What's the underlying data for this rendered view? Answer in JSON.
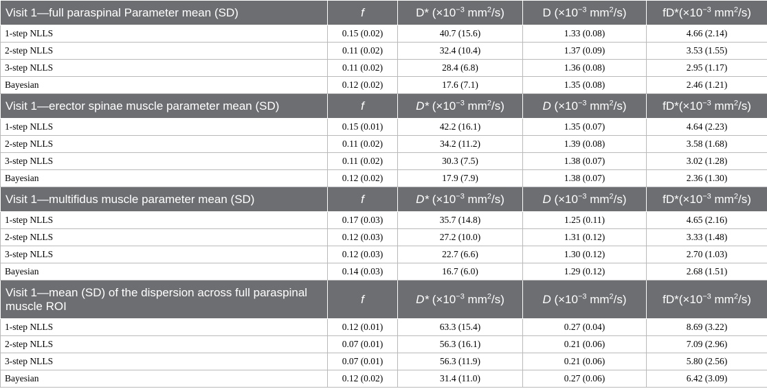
{
  "col_headers": {
    "f": "f",
    "dstar_pre": "D*",
    "d_pre": "D",
    "unit_lead": " (×10",
    "exp": "−3",
    "unit_mid": " mm",
    "sq": "2",
    "unit_tail": "/s)",
    "fdstar_pre": "fD*",
    "fdstar_lead": "(×10"
  },
  "sections": [
    {
      "title": "Visit 1—full paraspinal Parameter mean (SD)",
      "rows": [
        {
          "method": "1-step NLLS",
          "f": "0.15 (0.02)",
          "dstar": "40.7 (15.6)",
          "d": "1.33 (0.08)",
          "fdstar": "4.66 (2.14)"
        },
        {
          "method": "2-step NLLS",
          "f": "0.11 (0.02)",
          "dstar": "32.4 (10.4)",
          "d": "1.37 (0.09)",
          "fdstar": "3.53 (1.55)"
        },
        {
          "method": "3-step NLLS",
          "f": "0.11 (0.02)",
          "dstar": "28.4 (6.8)",
          "d": "1.36 (0.08)",
          "fdstar": "2.95 (1.17)"
        },
        {
          "method": "Bayesian",
          "f": "0.12 (0.02)",
          "dstar": "17.6 (7.1)",
          "d": "1.35 (0.08)",
          "fdstar": "2.46 (1.21)"
        }
      ]
    },
    {
      "title": "Visit 1—erector spinae muscle parameter mean (SD)",
      "rows": [
        {
          "method": "1-step NLLS",
          "f": "0.15 (0.01)",
          "dstar": "42.2 (16.1)",
          "d": "1.35 (0.07)",
          "fdstar": "4.64 (2.23)"
        },
        {
          "method": "2-step NLLS",
          "f": "0.11 (0.02)",
          "dstar": "34.2 (11.2)",
          "d": "1.39 (0.08)",
          "fdstar": "3.58 (1.68)"
        },
        {
          "method": "3-step NLLS",
          "f": "0.11 (0.02)",
          "dstar": "30.3 (7.5)",
          "d": "1.38 (0.07)",
          "fdstar": "3.02 (1.28)"
        },
        {
          "method": "Bayesian",
          "f": "0.12 (0.02)",
          "dstar": "17.9 (7.9)",
          "d": "1.38 (0.07)",
          "fdstar": "2.36 (1.30)"
        }
      ]
    },
    {
      "title": "Visit 1—multifidus muscle parameter mean (SD)",
      "rows": [
        {
          "method": "1-step NLLS",
          "f": "0.17 (0.03)",
          "dstar": "35.7 (14.8)",
          "d": "1.25 (0.11)",
          "fdstar": "4.65 (2.16)"
        },
        {
          "method": "2-step NLLS",
          "f": "0.12 (0.03)",
          "dstar": "27.2 (10.0)",
          "d": "1.31 (0.12)",
          "fdstar": "3.33 (1.48)"
        },
        {
          "method": "3-step NLLS",
          "f": "0.12 (0.03)",
          "dstar": "22.7 (6.6)",
          "d": "1.30 (0.12)",
          "fdstar": "2.70 (1.03)"
        },
        {
          "method": "Bayesian",
          "f": "0.14 (0.03)",
          "dstar": "16.7 (6.0)",
          "d": "1.29 (0.12)",
          "fdstar": "2.68 (1.51)"
        }
      ]
    },
    {
      "title": "Visit 1—mean (SD) of the dispersion across full paraspinal muscle ROI",
      "rows": [
        {
          "method": "1-step NLLS",
          "f": "0.12 (0.01)",
          "dstar": "63.3 (15.4)",
          "d": "0.27 (0.04)",
          "fdstar": "8.69 (3.22)"
        },
        {
          "method": "2-step NLLS",
          "f": "0.07 (0.01)",
          "dstar": "56.3 (16.1)",
          "d": "0.21 (0.06)",
          "fdstar": "7.09 (2.96)"
        },
        {
          "method": "3-step NLLS",
          "f": "0.07 (0.01)",
          "dstar": "56.3 (11.9)",
          "d": "0.21 (0.06)",
          "fdstar": "5.80 (2.56)"
        },
        {
          "method": "Bayesian",
          "f": "0.12 (0.02)",
          "dstar": "31.4 (11.0)",
          "d": "0.27 (0.06)",
          "fdstar": "6.42 (3.09)"
        }
      ]
    }
  ]
}
